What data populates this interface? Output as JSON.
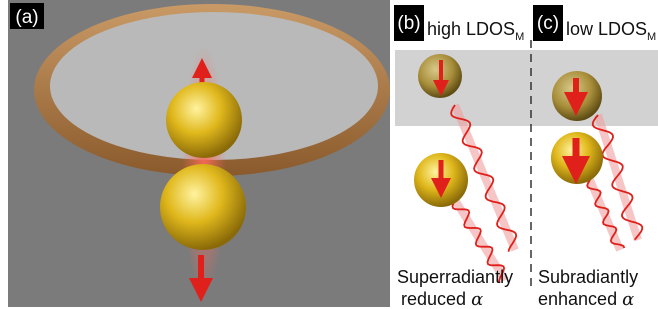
{
  "panels": [
    {
      "label": "(a)"
    },
    {
      "label": "(b)",
      "heading": "high LDOS",
      "heading_sub": "M",
      "caption": [
        "Superradiantly",
        "reduced"
      ],
      "symbol": "α"
    },
    {
      "label": "(c)",
      "heading": "low LDOS",
      "heading_sub": "M",
      "caption": [
        "Subradiantly",
        "enhanced"
      ],
      "symbol": "α"
    }
  ]
}
